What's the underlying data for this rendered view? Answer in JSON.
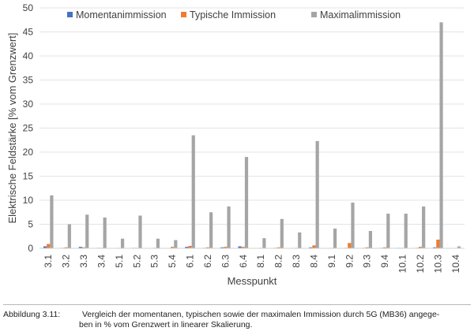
{
  "chart_data": {
    "type": "bar",
    "categories": [
      "3.1",
      "3.2",
      "3.3",
      "3.4",
      "5.1",
      "5.2",
      "5.3",
      "5.4",
      "6.1",
      "6.2",
      "6.3",
      "6.4",
      "8.1",
      "8.2",
      "8.3",
      "8.4",
      "9.1",
      "9.2",
      "9.3",
      "9.4",
      "10.1",
      "10.2",
      "10.3",
      "10.4"
    ],
    "series": [
      {
        "name": "Momentanimmission",
        "color": "#4472c4",
        "values": [
          0.4,
          0.1,
          0.3,
          0.1,
          0.05,
          0.1,
          0.05,
          0.05,
          0.3,
          0.1,
          0.2,
          0.4,
          0.05,
          0.1,
          0.05,
          0.2,
          0.05,
          0.1,
          0.1,
          0.1,
          0.1,
          0.1,
          0.2,
          0.05
        ]
      },
      {
        "name": "Typische Immission",
        "color": "#ed7d31",
        "values": [
          0.9,
          0.2,
          0.2,
          0.1,
          0.1,
          0.1,
          0.1,
          0.3,
          0.5,
          0.2,
          0.3,
          0.3,
          0.1,
          0.2,
          0.1,
          0.6,
          0.1,
          1.1,
          0.2,
          0.2,
          0.1,
          0.3,
          1.8,
          0.05
        ]
      },
      {
        "name": "Maximalimmission",
        "color": "#a5a5a5",
        "values": [
          11.0,
          5.0,
          7.0,
          6.4,
          2.0,
          6.8,
          2.0,
          1.7,
          23.5,
          7.5,
          8.7,
          19.0,
          2.1,
          6.1,
          3.3,
          22.3,
          4.1,
          9.5,
          3.6,
          7.2,
          7.2,
          8.7,
          47.0,
          0.4
        ]
      }
    ],
    "xlabel": "Messpunkt",
    "ylabel": "Elektrische Feldstärke [% vom Grenzwert]",
    "ylim": [
      0,
      50
    ],
    "yticks": [
      0,
      5,
      10,
      15,
      20,
      25,
      30,
      35,
      40,
      45,
      50
    ],
    "grid": true,
    "legend": "top-left"
  },
  "caption": {
    "label": "Abbildung 3.11:",
    "line1": "Vergleich der momentanen, typischen sowie der maximalen Immission durch 5G (MB36) angege-",
    "line2": "ben in % vom Grenzwert in linearer Skalierung."
  }
}
